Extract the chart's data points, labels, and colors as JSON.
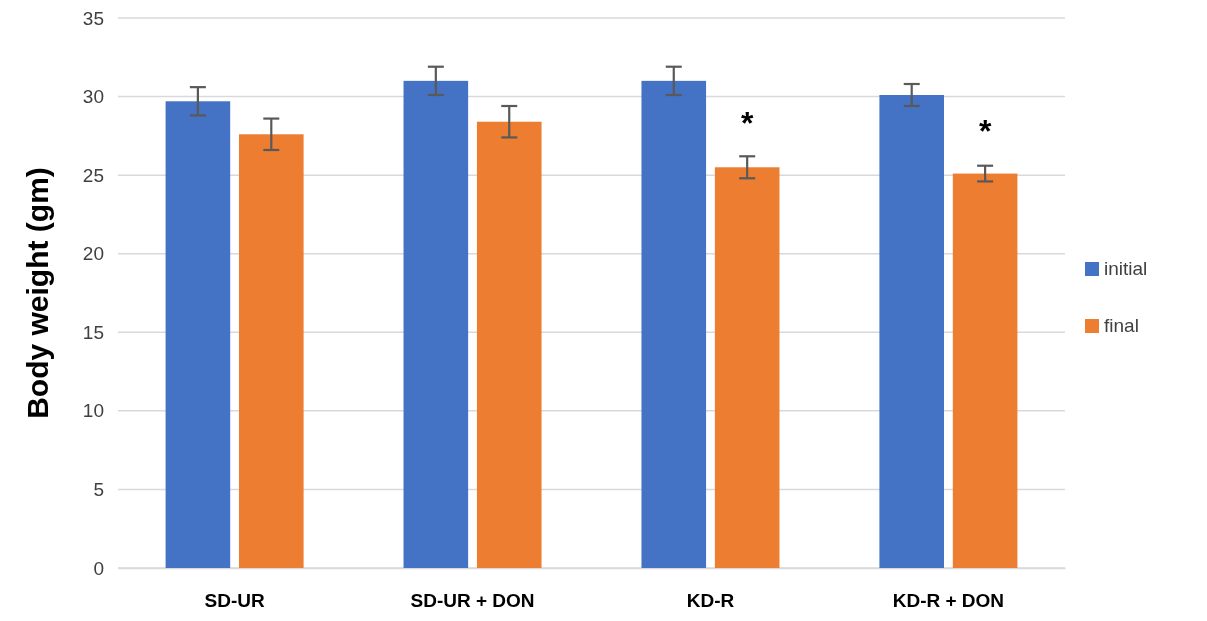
{
  "chart_data": {
    "type": "bar",
    "ylabel": "Body weight (gm)",
    "categories": [
      "SD-UR",
      "SD-UR + DON",
      "KD-R",
      "KD-R + DON"
    ],
    "series": [
      {
        "name": "initial",
        "color": "#4472c4",
        "values": [
          29.7,
          31.0,
          31.0,
          30.1
        ],
        "errors": [
          0.9,
          0.9,
          0.9,
          0.7
        ]
      },
      {
        "name": "final",
        "color": "#ed7d31",
        "values": [
          27.6,
          28.4,
          25.5,
          25.1
        ],
        "errors": [
          1.0,
          1.0,
          0.7,
          0.5
        ]
      }
    ],
    "ylim": [
      0,
      35
    ],
    "yticks": [
      0,
      5,
      10,
      15,
      20,
      25,
      30,
      35
    ],
    "grid": "y",
    "legend": "right",
    "annotations": [
      {
        "text": "*",
        "x": "KD-R",
        "y": 28.4
      },
      {
        "text": "*",
        "x": "KD-R + DON",
        "y": 27.9
      }
    ]
  }
}
